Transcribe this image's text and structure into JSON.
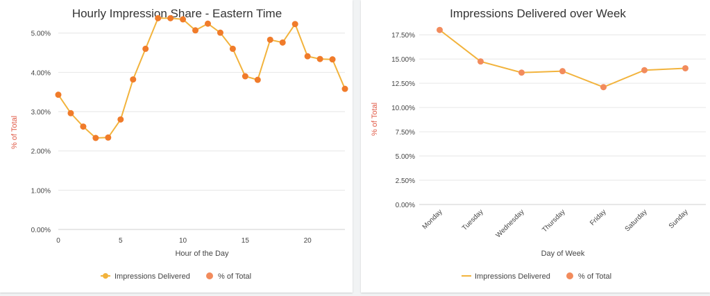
{
  "colors": {
    "line": "#f2b33c",
    "point_left": "#f07b2a",
    "point_right": "#f28b5c",
    "ytitle": "#e05a47"
  },
  "chart_data": [
    {
      "type": "line",
      "title": "Hourly Impression Share - Eastern Time",
      "xlabel": "Hour of the Day",
      "ylabel": "% of Total",
      "x": [
        0,
        1,
        2,
        3,
        4,
        5,
        6,
        7,
        8,
        9,
        10,
        11,
        12,
        13,
        14,
        15,
        16,
        17,
        18,
        19,
        20,
        21,
        22,
        23
      ],
      "xlim": [
        0,
        23
      ],
      "xticks": [
        0,
        5,
        10,
        15,
        20
      ],
      "xtick_labels": [
        "0",
        "5",
        "10",
        "15",
        "20"
      ],
      "ylim": [
        0,
        5.5
      ],
      "yticks": [
        0,
        1,
        2,
        3,
        4,
        5
      ],
      "ytick_labels": [
        "0.00%",
        "1.00%",
        "2.00%",
        "3.00%",
        "4.00%",
        "5.00%"
      ],
      "series": [
        {
          "name": "Impressions Delivered",
          "values": [
            3.43,
            2.96,
            2.62,
            2.33,
            2.34,
            2.8,
            3.82,
            4.6,
            5.38,
            5.38,
            5.35,
            5.07,
            5.24,
            5.01,
            4.6,
            3.9,
            3.81,
            4.83,
            4.76,
            5.23,
            4.41,
            4.34,
            4.33,
            3.58
          ]
        },
        {
          "name": "% of Total",
          "values": [
            3.43,
            2.96,
            2.62,
            2.33,
            2.34,
            2.8,
            3.82,
            4.6,
            5.38,
            5.38,
            5.35,
            5.07,
            5.24,
            5.01,
            4.6,
            3.9,
            3.81,
            4.83,
            4.76,
            5.23,
            4.41,
            4.34,
            4.33,
            3.58
          ]
        }
      ],
      "legend": [
        "Impressions Delivered",
        "% of Total"
      ],
      "legend_position": "bottom"
    },
    {
      "type": "line",
      "title": "Impressions Delivered over Week",
      "xlabel": "Day of Week",
      "ylabel": "% of Total",
      "categories": [
        "Monday",
        "Tuesday",
        "Wednesday",
        "Thursday",
        "Friday",
        "Saturday",
        "Sunday"
      ],
      "ylim": [
        0,
        18.5
      ],
      "yticks": [
        0,
        2.5,
        5,
        7.5,
        10,
        12.5,
        15,
        17.5
      ],
      "ytick_labels": [
        "0.00%",
        "2.50%",
        "5.00%",
        "7.50%",
        "10.00%",
        "12.50%",
        "15.00%",
        "17.50%"
      ],
      "series": [
        {
          "name": "Impressions Delivered",
          "values": [
            18.0,
            14.75,
            13.6,
            13.75,
            12.1,
            13.85,
            14.05
          ]
        },
        {
          "name": "% of Total",
          "values": [
            18.0,
            14.75,
            13.6,
            13.75,
            12.1,
            13.85,
            14.05
          ]
        }
      ],
      "legend": [
        "Impressions Delivered",
        "% of Total"
      ],
      "legend_position": "bottom"
    }
  ]
}
